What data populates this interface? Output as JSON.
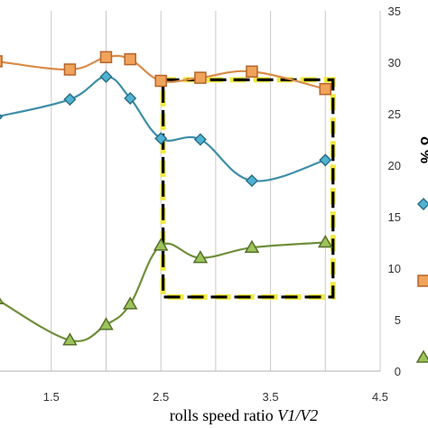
{
  "chart_data": {
    "type": "line",
    "xlabel": "rolls speed ratio V1/V2",
    "ylabel": "δ %",
    "x_ticks": [
      "1.5",
      "2.5",
      "3.5",
      "4.5"
    ],
    "y_ticks": [
      "0",
      "5",
      "10",
      "15",
      "20",
      "25",
      "30",
      "35"
    ],
    "xlim": [
      0.95,
      4.5
    ],
    "ylim": [
      0,
      35
    ],
    "y_axis_side": "right",
    "grid": "vertical",
    "series": [
      {
        "color": "#d98b4a",
        "marker": "square",
        "x": [
          1.0,
          1.67,
          2.0,
          2.22,
          2.5,
          2.86,
          3.33,
          4.0
        ],
        "y": [
          30.1,
          29.3,
          30.5,
          30.3,
          28.2,
          28.5,
          29.1,
          27.4
        ]
      },
      {
        "color": "#3e8ea8",
        "marker": "diamond",
        "x": [
          1.0,
          1.67,
          2.0,
          2.22,
          2.5,
          2.86,
          3.33,
          4.0
        ],
        "y": [
          24.7,
          26.4,
          28.6,
          26.5,
          22.6,
          22.5,
          18.5,
          20.5
        ]
      },
      {
        "color": "#6f8f3a",
        "marker": "triangle",
        "x": [
          1.0,
          1.67,
          2.0,
          2.22,
          2.5,
          2.86,
          3.33,
          4.0
        ],
        "y": [
          7.0,
          3.0,
          4.5,
          6.5,
          12.2,
          11.0,
          12.0,
          12.5
        ]
      }
    ],
    "highlight_box": {
      "x": [
        2.52,
        4.07
      ],
      "y": [
        7.2,
        28.3
      ]
    },
    "legend_markers": [
      {
        "color": "#3e8ea8",
        "marker": "diamond"
      },
      {
        "color": "#d98b4a",
        "marker": "square"
      },
      {
        "color": "#6f8f3a",
        "marker": "triangle"
      }
    ]
  }
}
